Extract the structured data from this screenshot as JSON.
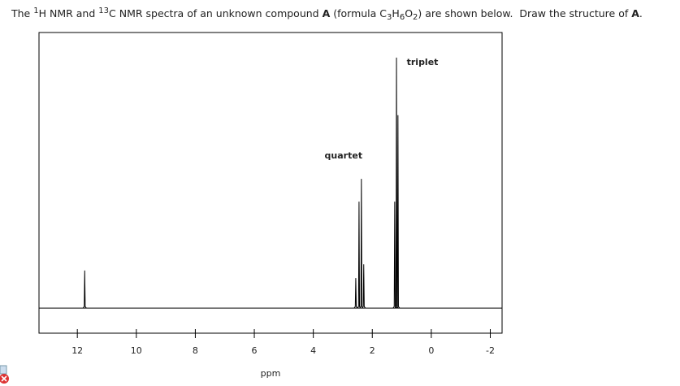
{
  "question": {
    "parts": [
      {
        "text": "The ",
        "style": "normal"
      },
      {
        "text": "1",
        "style": "sup"
      },
      {
        "text": "H NMR and ",
        "style": "normal"
      },
      {
        "text": "13",
        "style": "sup"
      },
      {
        "text": "C NMR spectra of an unknown compound ",
        "style": "normal"
      },
      {
        "text": "A",
        "style": "bold"
      },
      {
        "text": " (formula C",
        "style": "normal"
      },
      {
        "text": "3",
        "style": "sub"
      },
      {
        "text": "H",
        "style": "normal"
      },
      {
        "text": "6",
        "style": "sub"
      },
      {
        "text": "O",
        "style": "normal"
      },
      {
        "text": "2",
        "style": "sub"
      },
      {
        "text": ") are shown below.  Draw the structure of ",
        "style": "normal"
      },
      {
        "text": "A",
        "style": "bold"
      },
      {
        "text": ".",
        "style": "normal"
      }
    ]
  },
  "chart_data": {
    "type": "stick",
    "x_label": "ppm",
    "x": [
      11.75,
      2.56,
      2.45,
      2.37,
      2.29,
      1.24,
      1.18,
      1.13
    ],
    "values": [
      15,
      12,
      42.5,
      51.6,
      17.5,
      42.5,
      100,
      77
    ],
    "color": "#000000",
    "xlim": [
      13.3,
      -2.4
    ],
    "xticks": [
      12,
      10,
      8,
      6,
      4,
      2,
      0,
      -2
    ],
    "ylim": [
      -10,
      110
    ],
    "annotations": [
      {
        "text": "quartet",
        "x": 2.37
      },
      {
        "text": "triplet",
        "x": 1.18
      }
    ]
  }
}
